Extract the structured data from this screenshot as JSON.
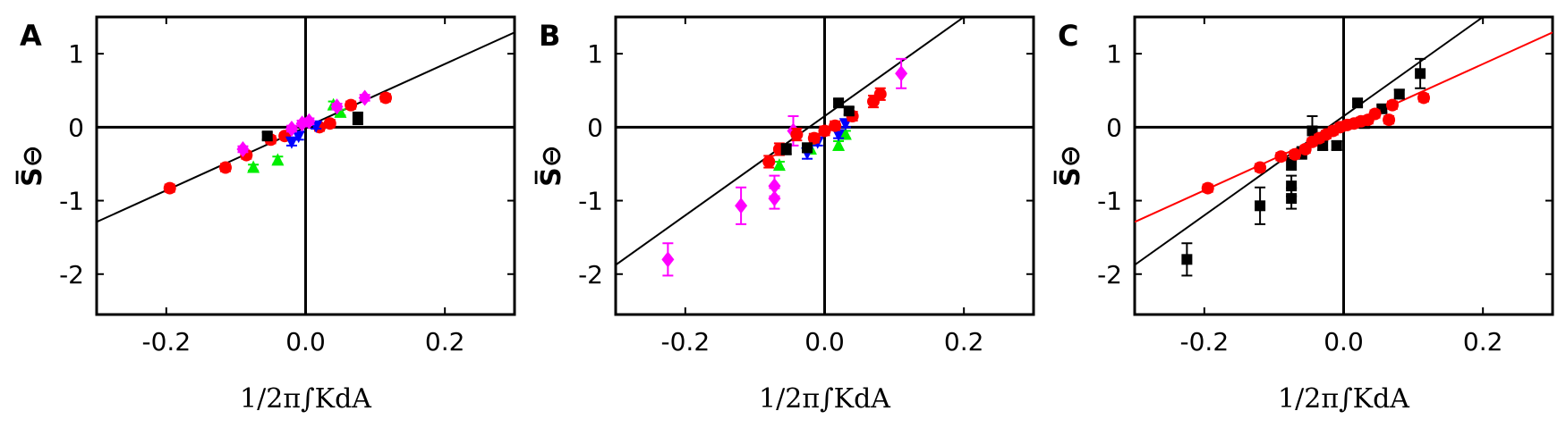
{
  "chart_data": [
    {
      "type": "scatter",
      "panel_label": "A",
      "xlabel": "1/2π∫KdA",
      "ylabel": "S̅⊖",
      "xlim": [
        -0.3,
        0.3
      ],
      "ylim": [
        -2.55,
        1.5
      ],
      "x_ticks": [
        -0.2,
        0.0,
        0.2
      ],
      "x_tick_labels": [
        "-0.2",
        "0.0",
        "0.2"
      ],
      "y_ticks": [
        1,
        0,
        -1,
        -2
      ],
      "y_tick_labels": [
        "1",
        "0",
        "-1",
        "-2"
      ],
      "grid": false,
      "zero_lines": true,
      "series": [
        {
          "color": "#ff0000",
          "marker": "circle",
          "points": [
            {
              "x": -0.195,
              "y": -0.83,
              "err": 0.05
            },
            {
              "x": -0.115,
              "y": -0.55,
              "err": 0.05
            },
            {
              "x": -0.085,
              "y": -0.38,
              "err": 0.05
            },
            {
              "x": -0.05,
              "y": -0.17,
              "err": 0.05
            },
            {
              "x": -0.03,
              "y": -0.12,
              "err": 0.04
            },
            {
              "x": 0.02,
              "y": 0.0,
              "err": 0.05
            },
            {
              "x": 0.035,
              "y": 0.05,
              "err": 0.05
            },
            {
              "x": 0.065,
              "y": 0.3,
              "err": 0.05
            },
            {
              "x": 0.115,
              "y": 0.4,
              "err": 0.05
            }
          ]
        },
        {
          "color": "#00ee00",
          "marker": "triangle-up",
          "points": [
            {
              "x": -0.075,
              "y": -0.55,
              "err": 0.04
            },
            {
              "x": -0.04,
              "y": -0.45,
              "err": 0.05
            },
            {
              "x": 0.04,
              "y": 0.3,
              "err": 0.05
            },
            {
              "x": 0.05,
              "y": 0.2,
              "err": 0.04
            }
          ]
        },
        {
          "color": "#0000ff",
          "marker": "triangle-down",
          "points": [
            {
              "x": -0.02,
              "y": -0.2,
              "err": 0.05
            },
            {
              "x": -0.01,
              "y": -0.12,
              "err": 0.05
            },
            {
              "x": 0.015,
              "y": 0.02,
              "err": 0.04
            }
          ]
        },
        {
          "color": "#ff00ff",
          "marker": "diamond",
          "points": [
            {
              "x": -0.09,
              "y": -0.3,
              "err": 0.04
            },
            {
              "x": -0.02,
              "y": -0.02,
              "err": 0.04
            },
            {
              "x": -0.005,
              "y": 0.05,
              "err": 0.04
            },
            {
              "x": 0.005,
              "y": 0.08,
              "err": 0.04
            },
            {
              "x": 0.045,
              "y": 0.28,
              "err": 0.04
            },
            {
              "x": 0.085,
              "y": 0.4,
              "err": 0.04
            }
          ]
        },
        {
          "color": "#000000",
          "marker": "square",
          "points": [
            {
              "x": -0.055,
              "y": -0.12,
              "err": 0.05
            },
            {
              "x": 0.075,
              "y": 0.12,
              "err": 0.08
            }
          ]
        }
      ],
      "fit_lines": [
        {
          "color": "#000000",
          "slope": 4.3,
          "intercept": 0.0
        }
      ]
    },
    {
      "type": "scatter",
      "panel_label": "B",
      "xlabel": "1/2π∫KdA",
      "ylabel": "S̅⊖",
      "xlim": [
        -0.3,
        0.3
      ],
      "ylim": [
        -2.55,
        1.5
      ],
      "x_ticks": [
        -0.2,
        0.0,
        0.2
      ],
      "x_tick_labels": [
        "-0.2",
        "0.0",
        "0.2"
      ],
      "y_ticks": [
        1,
        0,
        -1,
        -2
      ],
      "y_tick_labels": [
        "1",
        "0",
        "-1",
        "-2"
      ],
      "grid": false,
      "zero_lines": true,
      "series": [
        {
          "color": "#ff00ff",
          "marker": "diamond",
          "points": [
            {
              "x": -0.225,
              "y": -1.8,
              "err": 0.22
            },
            {
              "x": -0.12,
              "y": -1.07,
              "err": 0.25
            },
            {
              "x": -0.072,
              "y": -0.97,
              "err": 0.14
            },
            {
              "x": -0.072,
              "y": -0.8,
              "err": 0.14
            },
            {
              "x": -0.045,
              "y": -0.05,
              "err": 0.2
            },
            {
              "x": 0.11,
              "y": 0.73,
              "err": 0.2
            }
          ]
        },
        {
          "color": "#00ee00",
          "marker": "triangle-up",
          "points": [
            {
              "x": -0.065,
              "y": -0.52,
              "err": 0.05
            },
            {
              "x": -0.02,
              "y": -0.3,
              "err": 0.06
            },
            {
              "x": 0.02,
              "y": -0.25,
              "err": 0.06
            },
            {
              "x": 0.03,
              "y": -0.1,
              "err": 0.05
            }
          ]
        },
        {
          "color": "#0000ff",
          "marker": "triangle-down",
          "points": [
            {
              "x": -0.025,
              "y": -0.35,
              "err": 0.08
            },
            {
              "x": -0.01,
              "y": -0.2,
              "err": 0.05
            },
            {
              "x": 0.02,
              "y": -0.1,
              "err": 0.05
            },
            {
              "x": 0.03,
              "y": 0.05,
              "err": 0.05
            }
          ]
        },
        {
          "color": "#ff0000",
          "marker": "circle",
          "points": [
            {
              "x": -0.08,
              "y": -0.47,
              "err": 0.08
            },
            {
              "x": -0.065,
              "y": -0.3,
              "err": 0.08
            },
            {
              "x": -0.04,
              "y": -0.1,
              "err": 0.08
            },
            {
              "x": -0.015,
              "y": -0.15,
              "err": 0.06
            },
            {
              "x": 0.0,
              "y": -0.05,
              "err": 0.06
            },
            {
              "x": 0.015,
              "y": 0.02,
              "err": 0.06
            },
            {
              "x": 0.04,
              "y": 0.15,
              "err": 0.06
            },
            {
              "x": 0.07,
              "y": 0.35,
              "err": 0.08
            },
            {
              "x": 0.08,
              "y": 0.45,
              "err": 0.08
            }
          ]
        },
        {
          "color": "#000000",
          "marker": "square",
          "points": [
            {
              "x": -0.055,
              "y": -0.3,
              "err": 0.07
            },
            {
              "x": -0.025,
              "y": -0.28,
              "err": 0.06
            },
            {
              "x": 0.02,
              "y": 0.33,
              "err": 0.05
            },
            {
              "x": 0.035,
              "y": 0.22,
              "err": 0.05
            }
          ]
        }
      ],
      "fit_lines": [
        {
          "color": "#000000",
          "slope": 6.75,
          "intercept": 0.15
        }
      ]
    },
    {
      "type": "scatter",
      "panel_label": "C",
      "xlabel": "1/2π∫KdA",
      "ylabel": "S̅⊖",
      "xlim": [
        -0.3,
        0.3
      ],
      "ylim": [
        -2.55,
        1.5
      ],
      "x_ticks": [
        -0.2,
        0.0,
        0.2
      ],
      "x_tick_labels": [
        "-0.2",
        "0.0",
        "0.2"
      ],
      "y_ticks": [
        1,
        0,
        -1,
        -2
      ],
      "y_tick_labels": [
        "1",
        "0",
        "-1",
        "-2"
      ],
      "grid": false,
      "zero_lines": true,
      "series": [
        {
          "color": "#000000",
          "marker": "square",
          "points": [
            {
              "x": -0.225,
              "y": -1.8,
              "err": 0.22
            },
            {
              "x": -0.12,
              "y": -1.07,
              "err": 0.25
            },
            {
              "x": -0.075,
              "y": -0.97,
              "err": 0.14
            },
            {
              "x": -0.075,
              "y": -0.8,
              "err": 0.14
            },
            {
              "x": -0.075,
              "y": -0.5,
              "err": 0.08
            },
            {
              "x": -0.06,
              "y": -0.35,
              "err": 0.08
            },
            {
              "x": -0.045,
              "y": -0.05,
              "err": 0.2
            },
            {
              "x": -0.03,
              "y": -0.25,
              "err": 0.06
            },
            {
              "x": -0.01,
              "y": -0.25,
              "err": 0.06
            },
            {
              "x": 0.02,
              "y": 0.33,
              "err": 0.05
            },
            {
              "x": 0.03,
              "y": 0.05,
              "err": 0.05
            },
            {
              "x": 0.055,
              "y": 0.25,
              "err": 0.05
            },
            {
              "x": 0.08,
              "y": 0.45,
              "err": 0.06
            },
            {
              "x": 0.11,
              "y": 0.73,
              "err": 0.2
            }
          ]
        },
        {
          "color": "#ff0000",
          "marker": "circle",
          "points": [
            {
              "x": -0.195,
              "y": -0.83,
              "err": 0.05
            },
            {
              "x": -0.12,
              "y": -0.55,
              "err": 0.05
            },
            {
              "x": -0.09,
              "y": -0.4,
              "err": 0.05
            },
            {
              "x": -0.07,
              "y": -0.37,
              "err": 0.05
            },
            {
              "x": -0.055,
              "y": -0.3,
              "err": 0.05
            },
            {
              "x": -0.045,
              "y": -0.2,
              "err": 0.05
            },
            {
              "x": -0.035,
              "y": -0.15,
              "err": 0.05
            },
            {
              "x": -0.025,
              "y": -0.1,
              "err": 0.05
            },
            {
              "x": -0.015,
              "y": -0.05,
              "err": 0.05
            },
            {
              "x": -0.005,
              "y": 0.0,
              "err": 0.05
            },
            {
              "x": 0.005,
              "y": 0.03,
              "err": 0.05
            },
            {
              "x": 0.015,
              "y": 0.05,
              "err": 0.05
            },
            {
              "x": 0.025,
              "y": 0.08,
              "err": 0.05
            },
            {
              "x": 0.035,
              "y": 0.1,
              "err": 0.05
            },
            {
              "x": 0.045,
              "y": 0.18,
              "err": 0.05
            },
            {
              "x": 0.065,
              "y": 0.1,
              "err": 0.05
            },
            {
              "x": 0.07,
              "y": 0.3,
              "err": 0.05
            },
            {
              "x": 0.115,
              "y": 0.4,
              "err": 0.05
            }
          ]
        }
      ],
      "fit_lines": [
        {
          "color": "#000000",
          "slope": 6.75,
          "intercept": 0.15
        },
        {
          "color": "#ff0000",
          "slope": 4.3,
          "intercept": 0.0
        }
      ]
    }
  ]
}
